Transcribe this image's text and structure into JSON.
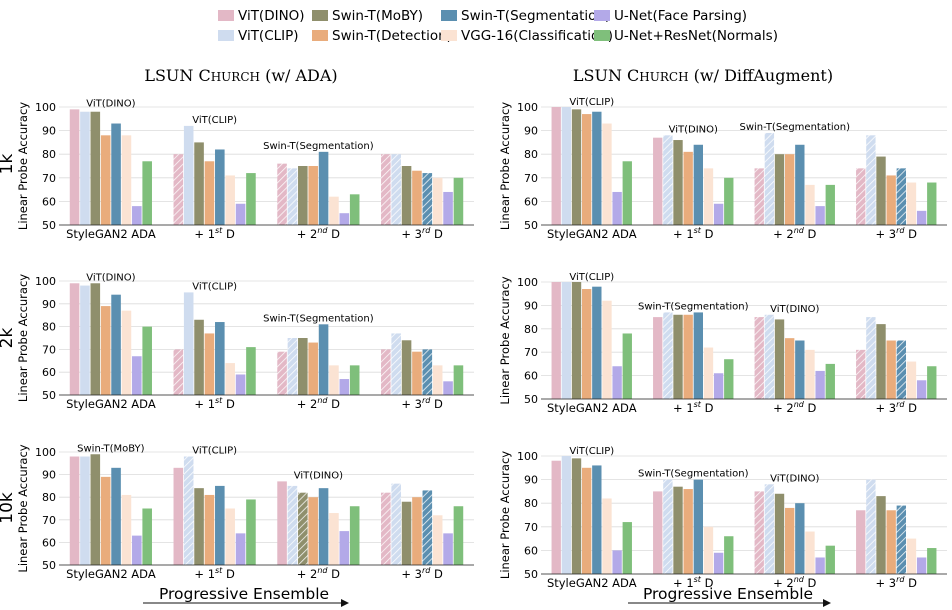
{
  "legend": {
    "items": [
      {
        "label": "ViT(DINO)",
        "color": "#e3b8c6",
        "hatch": "none"
      },
      {
        "label": "Swin-T(MoBY)",
        "color": "#8f8f6c",
        "hatch": "none"
      },
      {
        "label": "Swin-T(Segmentation)",
        "color": "#5b8fb0",
        "hatch": "none"
      },
      {
        "label": "U-Net(Face Parsing)",
        "color": "#b3a9e8",
        "hatch": "none"
      },
      {
        "label": "ViT(CLIP)",
        "color": "#cfdcef",
        "hatch": "none"
      },
      {
        "label": "Swin-T(Detection)",
        "color": "#e9ac7c",
        "hatch": "none"
      },
      {
        "label": "VGG-16(Classification)",
        "color": "#fbe3d3",
        "hatch": "none"
      },
      {
        "label": "U-Net+ResNet(Normals)",
        "color": "#7fbf7b",
        "hatch": "none"
      }
    ]
  },
  "columns": {
    "left_title_main": "LSUN C",
    "left_title_sc": "HURCH",
    "left_title_rest": " (w/ ADA)",
    "right_title_main": "LSUN C",
    "right_title_sc": "HURCH",
    "right_title_rest": " (w/ DiffAugment)"
  },
  "rows": [
    "1k",
    "2k",
    "10k"
  ],
  "ylabel": "Linear Probe Accuracy",
  "footer": "Progressive Ensemble",
  "chart_data": [
    {
      "type": "bar",
      "id": "ada-1k",
      "ylim": [
        50,
        100
      ],
      "yticks": [
        50,
        60,
        70,
        80,
        90,
        100
      ],
      "groups": [
        "StyleGAN2 ADA",
        "+ 1st D",
        "+ 2nd D",
        "+ 3rd D"
      ],
      "series_order": [
        "ViT(DINO)",
        "ViT(CLIP)",
        "Swin-T(MoBY)",
        "Swin-T(Detection)",
        "Swin-T(Segmentation)",
        "VGG-16(Classification)",
        "U-Net(Face Parsing)",
        "U-Net+ResNet(Normals)"
      ],
      "values": [
        [
          99,
          98,
          98,
          88,
          93,
          88,
          58,
          77
        ],
        [
          80,
          92,
          85,
          77,
          82,
          71,
          59,
          72
        ],
        [
          76,
          74,
          75,
          75,
          81,
          62,
          55,
          63
        ],
        [
          80,
          80,
          75,
          73,
          72,
          70,
          64,
          70
        ]
      ],
      "hatched": [
        [],
        [
          0
        ],
        [
          0,
          1
        ],
        [
          0,
          1,
          4
        ]
      ],
      "annotations": [
        {
          "group": 0,
          "label": "ViT(DINO)"
        },
        {
          "group": 1,
          "label": "ViT(CLIP)"
        },
        {
          "group": 2,
          "label": "Swin-T(Segmentation)"
        }
      ]
    },
    {
      "type": "bar",
      "id": "diff-1k",
      "ylim": [
        50,
        100
      ],
      "yticks": [
        50,
        60,
        70,
        80,
        90,
        100
      ],
      "groups": [
        "StyleGAN2 ADA",
        "+ 1st D",
        "+ 2nd D",
        "+ 3rd D"
      ],
      "series_order": [
        "ViT(DINO)",
        "ViT(CLIP)",
        "Swin-T(MoBY)",
        "Swin-T(Detection)",
        "Swin-T(Segmentation)",
        "VGG-16(Classification)",
        "U-Net(Face Parsing)",
        "U-Net+ResNet(Normals)"
      ],
      "values": [
        [
          100,
          100,
          99,
          97,
          98,
          93,
          64,
          77
        ],
        [
          87,
          88,
          86,
          81,
          84,
          74,
          59,
          70
        ],
        [
          74,
          89,
          80,
          80,
          84,
          67,
          58,
          67
        ],
        [
          74,
          88,
          79,
          71,
          74,
          68,
          56,
          68
        ]
      ],
      "hatched": [
        [],
        [
          1
        ],
        [
          0,
          1
        ],
        [
          0,
          1,
          4
        ]
      ],
      "annotations": [
        {
          "group": 0,
          "label": "ViT(CLIP)"
        },
        {
          "group": 1,
          "label": "ViT(DINO)"
        },
        {
          "group": 2,
          "label": "Swin-T(Segmentation)"
        }
      ]
    },
    {
      "type": "bar",
      "id": "ada-2k",
      "ylim": [
        50,
        100
      ],
      "yticks": [
        50,
        60,
        70,
        80,
        90,
        100
      ],
      "groups": [
        "StyleGAN2 ADA",
        "+ 1st D",
        "+ 2nd D",
        "+ 3rd D"
      ],
      "series_order": [
        "ViT(DINO)",
        "ViT(CLIP)",
        "Swin-T(MoBY)",
        "Swin-T(Detection)",
        "Swin-T(Segmentation)",
        "VGG-16(Classification)",
        "U-Net(Face Parsing)",
        "U-Net+ResNet(Normals)"
      ],
      "values": [
        [
          99,
          98,
          99,
          89,
          94,
          87,
          67,
          80
        ],
        [
          70,
          95,
          83,
          77,
          82,
          64,
          59,
          71
        ],
        [
          69,
          75,
          75,
          73,
          81,
          63,
          57,
          63
        ],
        [
          70,
          77,
          74,
          69,
          70,
          63,
          56,
          63
        ]
      ],
      "hatched": [
        [],
        [
          0
        ],
        [
          0,
          1
        ],
        [
          0,
          1,
          4
        ]
      ],
      "annotations": [
        {
          "group": 0,
          "label": "ViT(DINO)"
        },
        {
          "group": 1,
          "label": "ViT(CLIP)"
        },
        {
          "group": 2,
          "label": "Swin-T(Segmentation)"
        }
      ]
    },
    {
      "type": "bar",
      "id": "diff-2k",
      "ylim": [
        50,
        100
      ],
      "yticks": [
        50,
        60,
        70,
        80,
        90,
        100
      ],
      "groups": [
        "StyleGAN2 ADA",
        "+ 1st D",
        "+ 2nd D",
        "+ 3rd D"
      ],
      "series_order": [
        "ViT(DINO)",
        "ViT(CLIP)",
        "Swin-T(MoBY)",
        "Swin-T(Detection)",
        "Swin-T(Segmentation)",
        "VGG-16(Classification)",
        "U-Net(Face Parsing)",
        "U-Net+ResNet(Normals)"
      ],
      "values": [
        [
          100,
          100,
          100,
          97,
          98,
          92,
          64,
          78
        ],
        [
          85,
          87,
          86,
          86,
          87,
          72,
          61,
          67
        ],
        [
          85,
          86,
          84,
          76,
          75,
          71,
          62,
          65
        ],
        [
          71,
          85,
          82,
          75,
          75,
          66,
          58,
          64
        ]
      ],
      "hatched": [
        [],
        [
          1
        ],
        [
          0,
          1
        ],
        [
          0,
          1,
          4
        ]
      ],
      "annotations": [
        {
          "group": 0,
          "label": "ViT(CLIP)"
        },
        {
          "group": 1,
          "label": "Swin-T(Segmentation)"
        },
        {
          "group": 2,
          "label": "ViT(DINO)"
        }
      ]
    },
    {
      "type": "bar",
      "id": "ada-10k",
      "ylim": [
        50,
        100
      ],
      "yticks": [
        50,
        60,
        70,
        80,
        90,
        100
      ],
      "groups": [
        "StyleGAN2 ADA",
        "+ 1st D",
        "+ 2nd D",
        "+ 3rd D"
      ],
      "series_order": [
        "ViT(DINO)",
        "ViT(CLIP)",
        "Swin-T(MoBY)",
        "Swin-T(Detection)",
        "Swin-T(Segmentation)",
        "VGG-16(Classification)",
        "U-Net(Face Parsing)",
        "U-Net+ResNet(Normals)"
      ],
      "values": [
        [
          98,
          98,
          99,
          89,
          93,
          81,
          63,
          75
        ],
        [
          93,
          98,
          84,
          81,
          85,
          75,
          64,
          79
        ],
        [
          87,
          85,
          82,
          80,
          84,
          73,
          65,
          76
        ],
        [
          82,
          86,
          78,
          80,
          83,
          72,
          64,
          76
        ]
      ],
      "hatched": [
        [],
        [
          1
        ],
        [
          1,
          2
        ],
        [
          0,
          1,
          4
        ]
      ],
      "annotations": [
        {
          "group": 0,
          "label": "Swin-T(MoBY)"
        },
        {
          "group": 1,
          "label": "ViT(CLIP)"
        },
        {
          "group": 2,
          "label": "ViT(DINO)"
        }
      ]
    },
    {
      "type": "bar",
      "id": "diff-10k",
      "ylim": [
        50,
        100
      ],
      "yticks": [
        50,
        60,
        70,
        80,
        90,
        100
      ],
      "groups": [
        "StyleGAN2 ADA",
        "+ 1st D",
        "+ 2nd D",
        "+ 3rd D"
      ],
      "series_order": [
        "ViT(DINO)",
        "ViT(CLIP)",
        "Swin-T(MoBY)",
        "Swin-T(Detection)",
        "Swin-T(Segmentation)",
        "VGG-16(Classification)",
        "U-Net(Face Parsing)",
        "U-Net+ResNet(Normals)"
      ],
      "values": [
        [
          98,
          100,
          99,
          95,
          96,
          82,
          60,
          72
        ],
        [
          85,
          90,
          87,
          86,
          90,
          70,
          59,
          66
        ],
        [
          85,
          88,
          84,
          78,
          80,
          68,
          57,
          62
        ],
        [
          77,
          90,
          83,
          77,
          79,
          65,
          57,
          61
        ]
      ],
      "hatched": [
        [],
        [
          1
        ],
        [
          0,
          1
        ],
        [
          1,
          4
        ]
      ],
      "annotations": [
        {
          "group": 0,
          "label": "ViT(CLIP)"
        },
        {
          "group": 1,
          "label": "Swin-T(Segmentation)"
        },
        {
          "group": 2,
          "label": "ViT(DINO)"
        }
      ]
    }
  ]
}
